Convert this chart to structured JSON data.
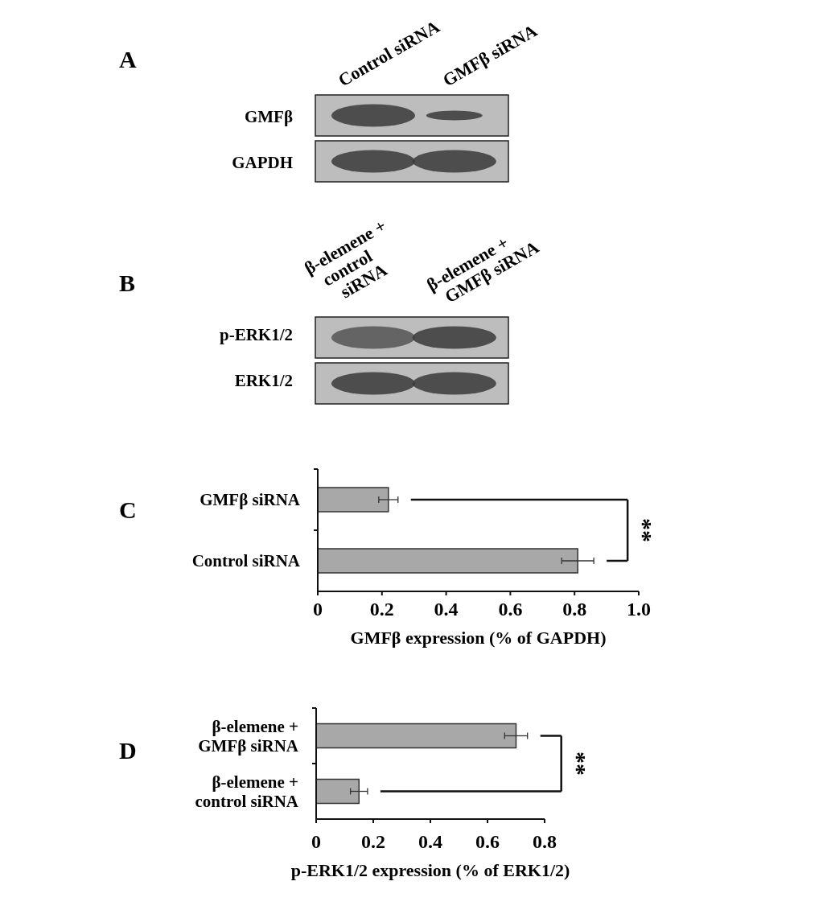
{
  "chart_data": [
    {
      "type": "other",
      "annotations": [
        "A",
        "Control siRNA",
        "GMFβ siRNA",
        "GMFβ",
        "GAPDH"
      ]
    },
    {
      "type": "other",
      "annotations": [
        "B",
        "β-elemene + control siRNA",
        "β-elemene + GMFβ siRNA",
        "p-ERK1/2",
        "ERK1/2"
      ]
    },
    {
      "type": "bar",
      "orientation": "horizontal",
      "categories": [
        "GMFβ siRNA",
        "Control siRNA"
      ],
      "values": [
        0.22,
        0.81
      ],
      "errors": [
        0.03,
        0.05
      ],
      "color": "#a8a8a8",
      "xlim": [
        0,
        1
      ],
      "xticks": [
        0,
        0.2,
        0.4,
        0.6,
        0.8,
        {
          "value": 1,
          "label": "1.0"
        }
      ],
      "xlabel": "GMFβ expression (% of GAPDH)",
      "annotations": [
        "C",
        "**"
      ]
    },
    {
      "type": "bar",
      "orientation": "horizontal",
      "categories": [
        "β-elemene + GMFβ siRNA",
        "β-elemene + control siRNA"
      ],
      "values": [
        0.7,
        0.15
      ],
      "errors": [
        0.04,
        0.03
      ],
      "color": "#a8a8a8",
      "xlim": [
        0,
        0.8
      ],
      "xticks": [
        0,
        0.2,
        0.4,
        0.6,
        0.8
      ],
      "xlabel": "p-ERK1/2 expression (% of ERK1/2)",
      "annotations": [
        "D",
        "**"
      ]
    }
  ]
}
